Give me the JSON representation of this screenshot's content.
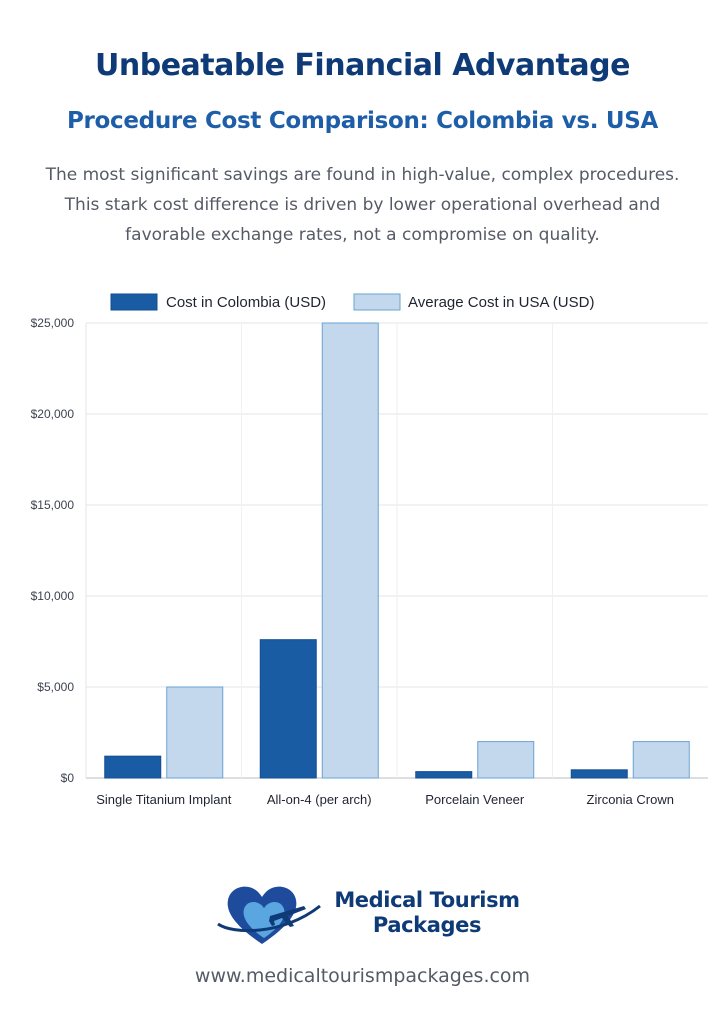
{
  "header": {
    "title": "Unbeatable Financial Advantage",
    "subtitle": "Procedure Cost Comparison: Colombia vs. USA",
    "description": "The most significant savings are found in high-value, complex procedures. This stark cost difference is driven by lower operational overhead and favorable exchange rates, not a compromise on quality."
  },
  "chart_data": {
    "type": "bar",
    "categories": [
      "Single Titanium Implant",
      "All-on-4 (per arch)",
      "Porcelain Veneer",
      "Zirconia Crown"
    ],
    "series": [
      {
        "name": "Cost in Colombia (USD)",
        "values": [
          1200,
          7600,
          350,
          450
        ],
        "color": "#1a5ca4"
      },
      {
        "name": "Average Cost in USA (USD)",
        "values": [
          5000,
          25000,
          2000,
          2000
        ],
        "color": "#c3d8ed"
      }
    ],
    "ylim": [
      0,
      25000
    ],
    "yticks": [
      0,
      5000,
      10000,
      15000,
      20000,
      25000
    ],
    "ytick_labels": [
      "$0",
      "$5,000",
      "$10,000",
      "$15,000",
      "$20,000",
      "$25,000"
    ],
    "grid": true,
    "legend": "top-center"
  },
  "logo": {
    "line1": "Medical Tourism",
    "line2": "Packages",
    "icon": "heart-airplane-icon"
  },
  "footer": {
    "url": "www.medicaltourismpackages.com"
  },
  "colors": {
    "title": "#0f3a78",
    "subtitle": "#1e5ea8",
    "text": "#555b66"
  }
}
